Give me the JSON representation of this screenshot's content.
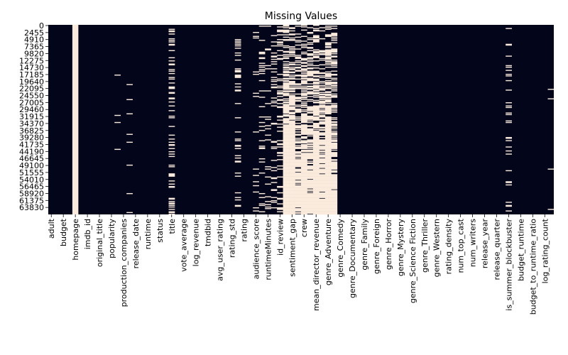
{
  "chart_data": {
    "type": "heatmap",
    "title": "Missing Values",
    "colors": {
      "present": "#03051a",
      "missing": "#faebdd"
    },
    "y_tick_labels": [
      "0",
      "2455",
      "4910",
      "7365",
      "9820",
      "12275",
      "14730",
      "17185",
      "19640",
      "22095",
      "24550",
      "27005",
      "29460",
      "31915",
      "34370",
      "36825",
      "39280",
      "41735",
      "44190",
      "46645",
      "49100",
      "51555",
      "54010",
      "56465",
      "58920",
      "61375",
      "63830"
    ],
    "x_tick_labels": [
      "adult",
      "budget",
      "homepage",
      "imdb_id",
      "original_title",
      "popularity",
      "production_companies",
      "release_date",
      "runtime",
      "status",
      "title",
      "vote_average",
      "log_revenue",
      "tmdbid",
      "avg_user_rating",
      "rating_std",
      "rating",
      "audience_score",
      "runtimeMinutes",
      "id_review",
      "sentiment_gap",
      "crew",
      "mean_director_revenue",
      "genre_Adventure",
      "genre_Comedy",
      "genre_Documentary",
      "genre_Family",
      "genre_Foreign",
      "genre_Horror",
      "genre_Mystery",
      "genre_Science Fiction",
      "genre_Thriller",
      "genre_Western",
      "rating_density",
      "num_top_cast",
      "num_writers",
      "release_year",
      "release_quarter",
      "is_summer_blockbuster",
      "budget_runtime",
      "budget_to_runtime_ratio",
      "log_rating_count"
    ],
    "total_columns": 84,
    "missing_fraction_by_column": [
      0,
      0,
      0,
      0,
      0.97,
      0,
      0,
      0,
      0,
      0,
      0,
      0.01,
      0,
      0.04,
      0,
      0,
      0,
      0,
      0,
      0,
      0.29,
      0,
      0,
      0,
      0,
      0,
      0,
      0,
      0,
      0,
      0,
      0.13,
      0,
      0,
      0.06,
      0.12,
      0.1,
      0.18,
      0.2,
      0.88,
      0.9,
      0.55,
      0.75,
      0.6,
      0.85,
      0.6,
      0.85,
      0.6,
      0,
      0,
      0,
      0,
      0,
      0,
      0,
      0,
      0,
      0,
      0,
      0,
      0,
      0,
      0,
      0,
      0,
      0,
      0,
      0,
      0,
      0,
      0,
      0,
      0,
      0,
      0,
      0,
      0.12,
      0,
      0,
      0,
      0,
      0,
      0,
      0.01
    ]
  }
}
